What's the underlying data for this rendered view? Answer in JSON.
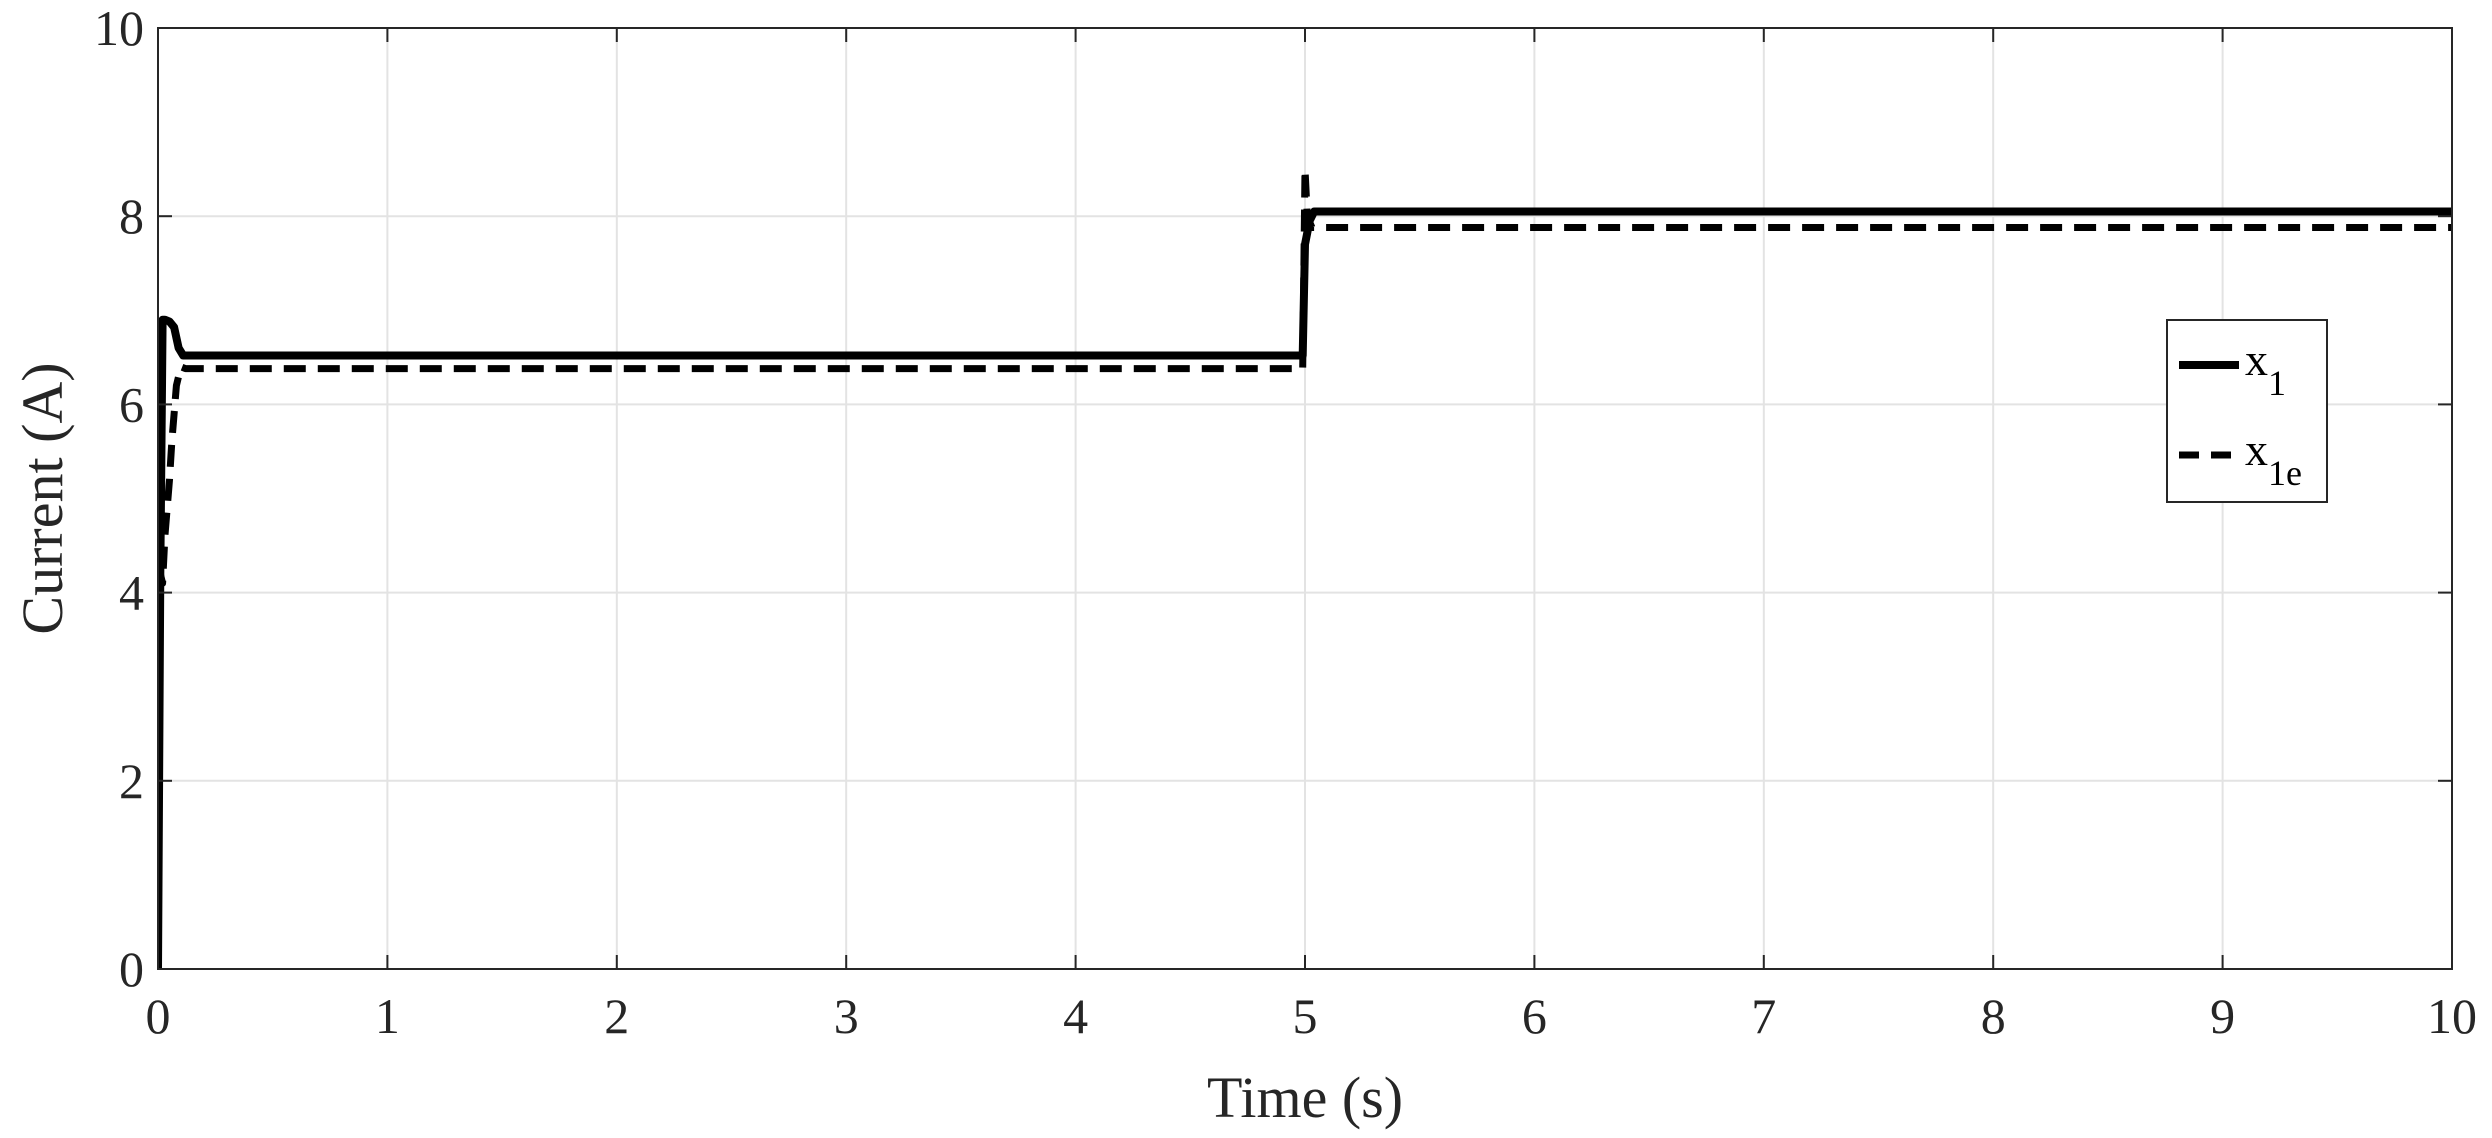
{
  "chart_data": {
    "type": "line",
    "title": "",
    "xlabel": "Time (s)",
    "ylabel": "Current (A)",
    "xlim": [
      0,
      10
    ],
    "ylim": [
      0,
      10
    ],
    "xticks": [
      0,
      1,
      2,
      3,
      4,
      5,
      6,
      7,
      8,
      9,
      10
    ],
    "yticks": [
      0,
      2,
      4,
      6,
      8,
      10
    ],
    "xtick_labels": [
      "0",
      "1",
      "2",
      "3",
      "4",
      "5",
      "6",
      "7",
      "8",
      "9",
      "10"
    ],
    "ytick_labels": [
      "0",
      "2",
      "4",
      "6",
      "8",
      "10"
    ],
    "grid": true,
    "legend_position": "right",
    "legend": [
      {
        "main": "x",
        "sub": "1",
        "style": "solid"
      },
      {
        "main": "x",
        "sub": "1e",
        "style": "dashed"
      }
    ],
    "series": [
      {
        "style": "solid",
        "color": "#000000",
        "x": [
          0,
          0.01,
          0.02,
          0.03,
          0.05,
          0.07,
          0.09,
          0.11,
          0.13,
          0.2,
          1,
          2,
          3,
          4,
          4.99,
          5.0,
          5.02,
          5.04,
          5.06,
          6,
          7,
          8,
          9,
          10
        ],
        "y": [
          0,
          4.2,
          6.9,
          6.9,
          6.88,
          6.82,
          6.6,
          6.52,
          6.52,
          6.52,
          6.52,
          6.52,
          6.52,
          6.52,
          6.52,
          7.7,
          7.95,
          8.05,
          8.05,
          8.05,
          8.05,
          8.05,
          8.05,
          8.05
        ]
      },
      {
        "style": "dashed",
        "color": "#000000",
        "x": [
          0,
          0.02,
          0.03,
          0.05,
          0.06,
          0.08,
          0.1,
          0.12,
          0.2,
          1,
          2,
          3,
          4,
          4.99,
          5.0,
          5.01,
          5.03,
          5.05,
          6,
          7,
          8,
          9,
          10
        ],
        "y": [
          4.3,
          4.1,
          4.6,
          5.2,
          5.6,
          6.2,
          6.4,
          6.38,
          6.38,
          6.38,
          6.38,
          6.38,
          6.38,
          6.38,
          8.5,
          8.0,
          7.88,
          7.88,
          7.88,
          7.88,
          7.88,
          7.88,
          7.88
        ]
      }
    ]
  }
}
